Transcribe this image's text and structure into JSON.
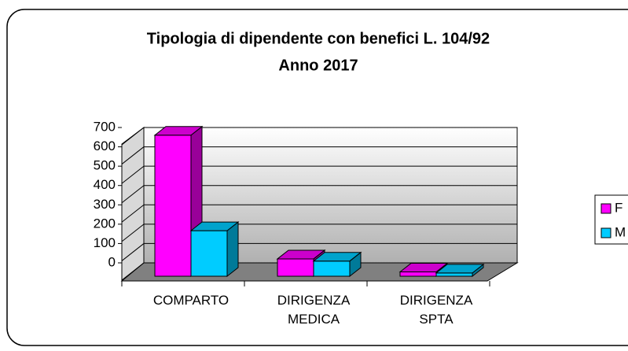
{
  "chart_data": {
    "type": "bar3d",
    "title": "Tipologia di dipendente con benefici L. 104/92",
    "subtitle": "Anno 2017",
    "categories": [
      "COMPARTO",
      "DIRIGENZA MEDICA",
      "DIRIGENZA SPTA"
    ],
    "series": [
      {
        "name": "F",
        "color": "#ff00ff",
        "values": [
          650,
          80,
          20
        ]
      },
      {
        "name": "M",
        "color": "#00ccff",
        "values": [
          210,
          70,
          15
        ]
      }
    ],
    "ylim": [
      0,
      700
    ],
    "yticks": [
      0,
      100,
      200,
      300,
      400,
      500,
      600,
      700
    ],
    "grid": true,
    "legend": "right"
  }
}
